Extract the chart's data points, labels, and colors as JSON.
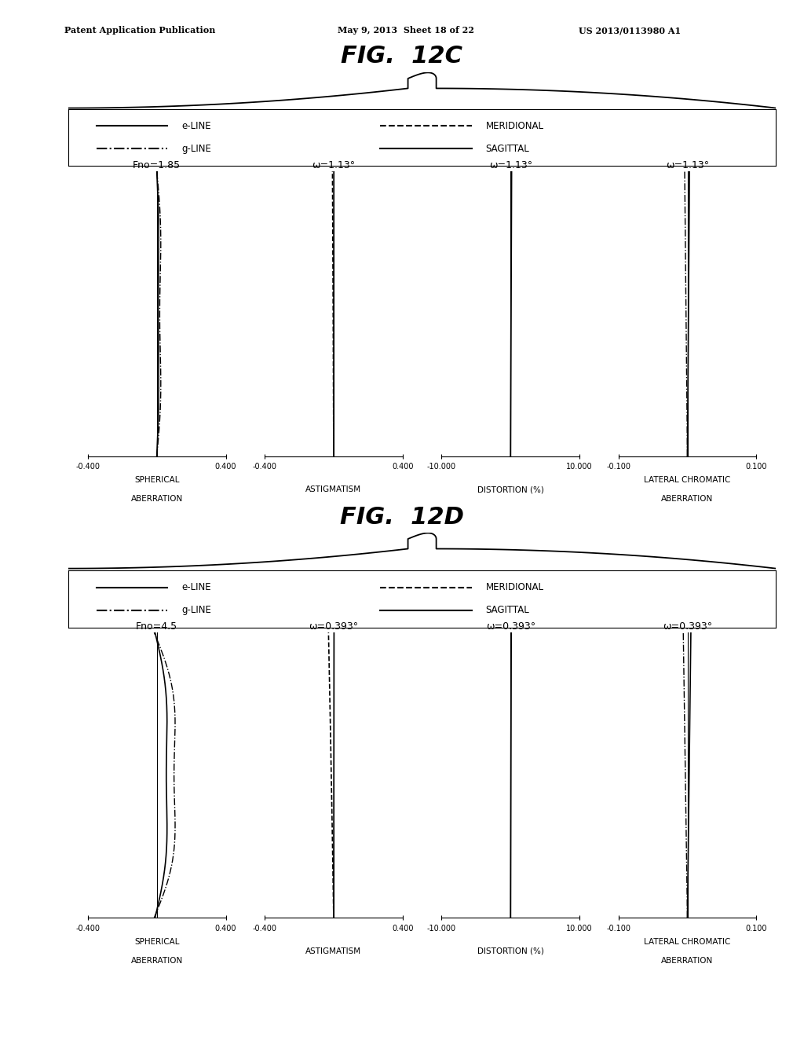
{
  "fig_title_c": "FIG.  12C",
  "fig_title_d": "FIG.  12D",
  "header_left": "Patent Application Publication",
  "header_mid": "May 9, 2013  Sheet 18 of 22",
  "header_right": "US 2013/0113980 A1",
  "fig_c": {
    "panels": [
      {
        "title": "Fno=1.85",
        "xlabel_line1": "SPHERICAL",
        "xlabel_line2": "ABERRATION",
        "xlim": [
          -0.4,
          0.4
        ],
        "xticks": [
          -0.4,
          0.4
        ]
      },
      {
        "title": "ω=1.13°",
        "xlabel_line1": "ASTIGMATISM",
        "xlabel_line2": "",
        "xlim": [
          -0.4,
          0.4
        ],
        "xticks": [
          -0.4,
          0.4
        ]
      },
      {
        "title": "ω=1.13°",
        "xlabel_line1": "DISTORTION (%)",
        "xlabel_line2": "",
        "xlim": [
          -10.0,
          10.0
        ],
        "xticks": [
          -10.0,
          10.0
        ]
      },
      {
        "title": "ω=1.13°",
        "xlabel_line1": "LATERAL CHROMATIC",
        "xlabel_line2": "ABERRATION",
        "xlim": [
          -0.1,
          0.1
        ],
        "xticks": [
          -0.1,
          0.1
        ]
      }
    ]
  },
  "fig_d": {
    "panels": [
      {
        "title": "Fno=4.5",
        "xlabel_line1": "SPHERICAL",
        "xlabel_line2": "ABERRATION",
        "xlim": [
          -0.4,
          0.4
        ],
        "xticks": [
          -0.4,
          0.4
        ]
      },
      {
        "title": "ω=0.393°",
        "xlabel_line1": "ASTIGMATISM",
        "xlabel_line2": "",
        "xlim": [
          -0.4,
          0.4
        ],
        "xticks": [
          -0.4,
          0.4
        ]
      },
      {
        "title": "ω=0.393°",
        "xlabel_line1": "DISTORTION (%)",
        "xlabel_line2": "",
        "xlim": [
          -10.0,
          10.0
        ],
        "xticks": [
          -10.0,
          10.0
        ]
      },
      {
        "title": "ω=0.393°",
        "xlabel_line1": "LATERAL CHROMATIC",
        "xlabel_line2": "ABERRATION",
        "xlim": [
          -0.1,
          0.1
        ],
        "xticks": [
          -0.1,
          0.1
        ]
      }
    ]
  },
  "background_color": "#ffffff"
}
